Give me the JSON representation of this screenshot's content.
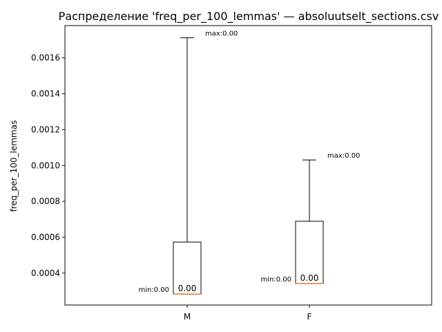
{
  "chart_data": {
    "type": "box",
    "title": "Распределение 'freq_per_100_lemmas' — absoluutselt_sections.csv",
    "ylabel": "freq_per_100_lemmas",
    "xlabel": "",
    "ylim": [
      0.000222,
      0.00178
    ],
    "y_ticks": [
      0.0004,
      0.0006,
      0.0008,
      0.001,
      0.0012,
      0.0014,
      0.0016
    ],
    "y_tick_labels": [
      "0.0004",
      "0.0006",
      "0.0008",
      "0.0010",
      "0.0012",
      "0.0014",
      "0.0016"
    ],
    "categories": [
      "M",
      "F"
    ],
    "boxes": [
      {
        "category": "M",
        "whisker_low": 0.000283,
        "q1": 0.000283,
        "median": 0.000283,
        "q3": 0.000573,
        "whisker_high": 0.001712,
        "median_label": "0.00",
        "min_label": "min:0.00",
        "max_label": "max:0.00"
      },
      {
        "category": "F",
        "whisker_low": 0.000342,
        "q1": 0.000342,
        "median": 0.000342,
        "q3": 0.000689,
        "whisker_high": 0.001031,
        "median_label": "0.00",
        "min_label": "min:0.00",
        "max_label": "max:0.00"
      }
    ],
    "colors": {
      "median": "#e8803a",
      "box": "#000000"
    },
    "grid": false,
    "legend": "none"
  }
}
